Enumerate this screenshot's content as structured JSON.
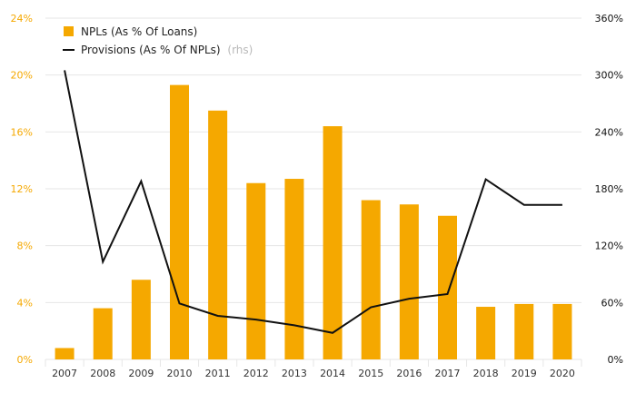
{
  "chart_data": {
    "type": "bar+line",
    "categories": [
      "2007",
      "2008",
      "2009",
      "2010",
      "2011",
      "2012",
      "2013",
      "2014",
      "2015",
      "2016",
      "2017",
      "2018",
      "2019",
      "2020"
    ],
    "series": [
      {
        "name": "NPLs (As % Of Loans)",
        "type": "bar",
        "axis": "left",
        "color": "#f5a800",
        "values": [
          0.8,
          3.6,
          5.6,
          19.3,
          17.5,
          12.4,
          12.7,
          16.4,
          11.2,
          10.9,
          10.1,
          3.7,
          3.9,
          3.9
        ]
      },
      {
        "name": "Provisions (As % Of NPLs)",
        "type": "line",
        "axis": "right",
        "color": "#111111",
        "values": [
          305,
          103,
          188,
          59,
          46,
          42,
          36,
          28,
          55,
          64,
          69,
          190,
          163,
          163
        ]
      }
    ],
    "legend": {
      "bar_label": "NPLs (As % Of Loans)",
      "line_label": "Provisions (As % Of NPLs)",
      "line_suffix": "(rhs)",
      "position": "top-left"
    },
    "ylim_left": [
      0,
      24
    ],
    "yticks_left": [
      "0%",
      "4%",
      "8%",
      "12%",
      "16%",
      "20%",
      "24%"
    ],
    "ylim_right": [
      0,
      360
    ],
    "yticks_right": [
      "0%",
      "60%",
      "120%",
      "180%",
      "240%",
      "300%",
      "360%"
    ],
    "grid": true,
    "colors": {
      "bar": "#f5a800",
      "line": "#111111",
      "grid": "#e6e6e6",
      "left_axis_text": "#f5a800"
    }
  }
}
